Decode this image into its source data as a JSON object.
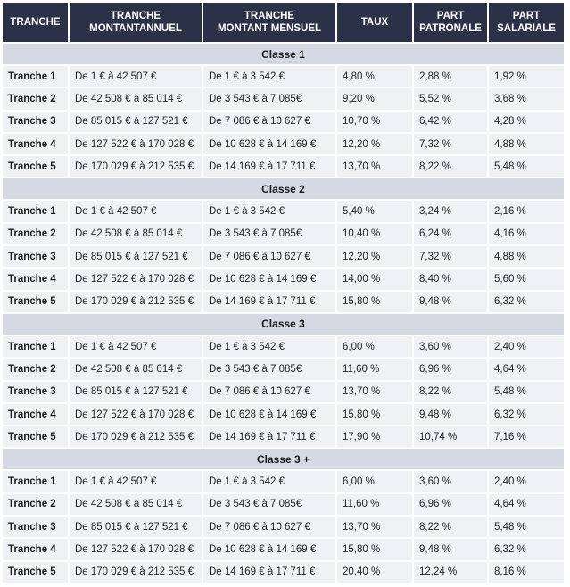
{
  "headers": [
    [
      "TRANCHE"
    ],
    [
      "TRANCHE",
      "MONTANTANNUEL"
    ],
    [
      "TRANCHE",
      "MONTANT MENSUEL"
    ],
    [
      "TAUX"
    ],
    [
      "PART",
      "PATRONALE"
    ],
    [
      "PART",
      "SALARIALE"
    ]
  ],
  "groups": [
    {
      "title": "Classe 1",
      "rows": [
        [
          "Tranche 1",
          "De 1 € à 42 507 €",
          "De 1 € à 3 542 €",
          "4,80 %",
          "2,88 %",
          "1,92 %"
        ],
        [
          "Tranche 2",
          "De 42 508 € à 85 014 €",
          "De 3 543 € à 7 085€",
          "9,20 %",
          "5,52 %",
          "3,68 %"
        ],
        [
          "Tranche 3",
          "De 85 015 € à 127 521 €",
          "De 7 086 € à 10 627 €",
          "10,70 %",
          "6,42 %",
          "4,28 %"
        ],
        [
          "Tranche 4",
          "De 127 522 € à 170 028 €",
          "De 10 628 € à 14 169 €",
          "12,20 %",
          "7,32 %",
          "4,88 %"
        ],
        [
          "Tranche 5",
          "De 170 029 € à 212 535 €",
          "De 14 169 € à 17 711 €",
          "13,70 %",
          "8,22 %",
          "5,48 %"
        ]
      ]
    },
    {
      "title": "Classe 2",
      "rows": [
        [
          "Tranche 1",
          "De 1 € à 42 507 €",
          "De 1 € à 3 542 €",
          "5,40 %",
          "3,24 %",
          "2,16 %"
        ],
        [
          "Tranche 2",
          "De 42 508 € à 85 014 €",
          "De 3 543 € à 7 085€",
          "10,40 %",
          "6,24 %",
          "4,16 %"
        ],
        [
          "Tranche 3",
          "De 85 015 € à 127 521 €",
          "De 7 086 € à 10 627 €",
          "12,20 %",
          "7,32 %",
          "4,88 %"
        ],
        [
          "Tranche 4",
          "De 127 522 € à 170 028 €",
          "De 10 628 € à 14 169 €",
          "14,00 %",
          "8,40 %",
          "5,60 %"
        ],
        [
          "Tranche 5",
          "De 170 029 € à 212 535 €",
          "De 14 169 € à 17 711 €",
          "15,80 %",
          "9,48 %",
          "6,32 %"
        ]
      ]
    },
    {
      "title": "Classe 3",
      "rows": [
        [
          "Tranche 1",
          "De 1 € à 42 507 €",
          "De 1 € à 3 542 €",
          "6,00 %",
          "3,60 %",
          "2,40 %"
        ],
        [
          "Tranche 2",
          "De 42 508 € à 85 014 €",
          "De 3 543 € à 7 085€",
          "11,60 %",
          "6,96 %",
          "4,64 %"
        ],
        [
          "Tranche 3",
          "De 85 015 € à 127 521 €",
          "De 7 086 € à 10 627 €",
          "13,70 %",
          "8,22 %",
          "5,48 %"
        ],
        [
          "Tranche 4",
          "De 127 522 € à 170 028 €",
          "De 10 628 € à 14 169 €",
          "15,80 %",
          "9,48 %",
          "6,32 %"
        ],
        [
          "Tranche 5",
          "De 170 029 € à 212 535 €",
          "De 14 169 € à 17 711 €",
          "17,90 %",
          "10,74 %",
          "7,16 %"
        ]
      ]
    },
    {
      "title": "Classe 3 +",
      "rows": [
        [
          "Tranche 1",
          "De 1 € à 42 507 €",
          "De 1 € à 3 542 €",
          "6,00 %",
          "3,60 %",
          "2,40 %"
        ],
        [
          "Tranche 2",
          "De 42 508 € à 85 014 €",
          "De 3 543 € à 7 085€",
          "11,60 %",
          "6,96 %",
          "4,64 %"
        ],
        [
          "Tranche 3",
          "De 85 015 € à 127 521 €",
          "De 7 086 € à 10 627 €",
          "13,70 %",
          "8,22 %",
          "5,48 %"
        ],
        [
          "Tranche 4",
          "De 127 522 € à 170 028 €",
          "De 10 628 € à 14 169 €",
          "15,80 %",
          "9,48 %",
          "6,32 %"
        ],
        [
          "Tranche 5",
          "De 170 029 € à 212 535 €",
          "De 14 169 € à 17 711 €",
          "20,40 %",
          "12,24 %",
          "8,16 %"
        ]
      ]
    }
  ]
}
